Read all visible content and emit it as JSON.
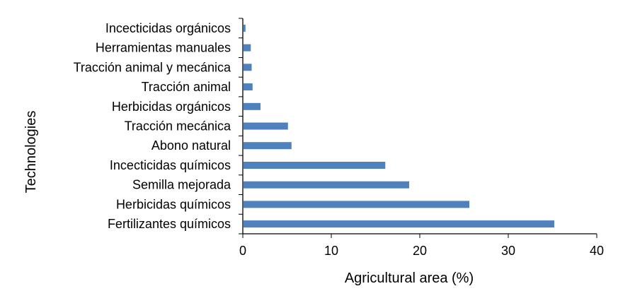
{
  "chart_data": {
    "type": "bar",
    "orientation": "horizontal",
    "categories": [
      "Incecticidas orgánicos",
      "Herramientas manuales ",
      "Tracción animal y mecánica",
      "Tracción animal",
      "Herbicidas orgánicos",
      "Tracción mecánica",
      "Abono natural",
      "Incecticidas químicos",
      "Semilla mejorada",
      "Herbicidas químicos",
      "Fertilizantes químicos "
    ],
    "values": [
      0.3,
      0.9,
      1.0,
      1.1,
      2.0,
      5.1,
      5.5,
      16.1,
      18.8,
      25.6,
      35.2
    ],
    "xlabel": "Agricultural area (%)",
    "ylabel": "Technologies",
    "xlim": [
      0,
      40
    ],
    "xticks": [
      0,
      10,
      20,
      30,
      40
    ],
    "bar_color": "#4f81bd",
    "grid": false,
    "legend": "none"
  }
}
